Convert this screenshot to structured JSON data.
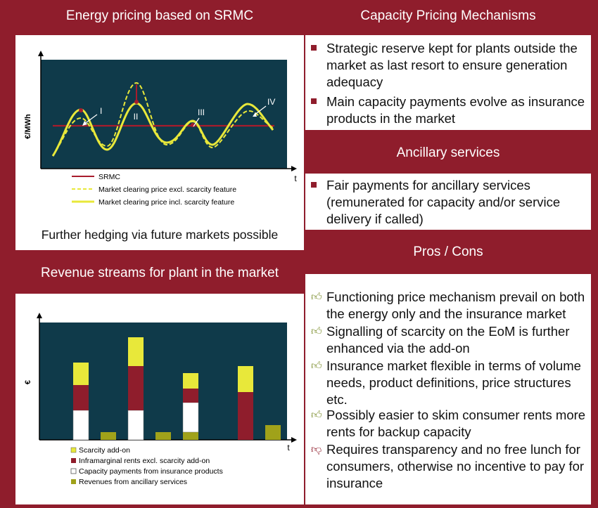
{
  "energy": {
    "title": "Energy pricing based on SRMC",
    "ylabel": "€/MWh",
    "xlabel": "t",
    "labels": [
      "I",
      "II",
      "III",
      "IV"
    ],
    "legend": [
      "SRMC",
      "Market clearing price excl. scarcity feature",
      "Market clearing price incl. scarcity feature"
    ],
    "note": "Further hedging via future markets possible"
  },
  "capacity": {
    "title": "Capacity Pricing Mechanisms",
    "bullets": [
      "Strategic reserve kept for plants outside the market as last resort to ensure generation adequacy",
      "Main capacity payments evolve as insurance products in the market"
    ]
  },
  "ancillary": {
    "title": "Ancillary services",
    "bullets": [
      "Fair payments for ancillary services (remunerated for capacity and/or service delivery if called)"
    ]
  },
  "revenue": {
    "title": "Revenue streams for plant in the market",
    "ylabel": "€",
    "xlabel": "t",
    "legend": [
      "Scarcity add-on",
      "Inframarginal rents excl. scarcity add-on",
      "Capacity payments from insurance products",
      "Revenues from ancillary services"
    ]
  },
  "proscons": {
    "title": "Pros / Cons",
    "pros": [
      "Functioning price mechanism prevail on both the energy only and the insurance market",
      "Signalling of scarcity on the EoM is further enhanced via the add-on",
      "Insurance market flexible in terms of volume needs, product definitions, price structures etc.",
      "Possibly easier to skim consumer rents more rents for backup capacity"
    ],
    "cons": [
      "Requires transparency and no free lunch for consumers, otherwise no incentive to pay for insurance"
    ]
  },
  "colors": {
    "frame": "#8f1d2c",
    "chart_bg": "#0f3a4a",
    "yellow": "#e8e83a",
    "maroon": "#8f1d2c",
    "olive": "#a0a21a",
    "srmc": "#a81c2c"
  }
}
